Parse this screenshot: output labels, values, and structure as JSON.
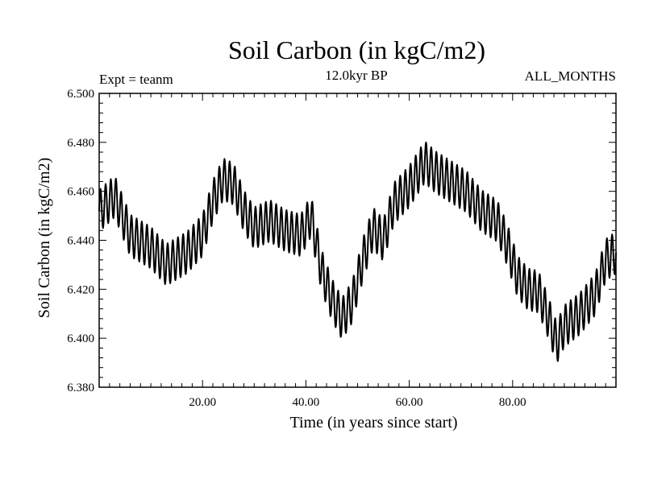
{
  "chart_data": {
    "type": "line",
    "title": "Soil Carbon (in kgC/m2)",
    "subtitle": "12.0kyr BP",
    "left_label": "Expt = teanm",
    "right_label": "ALL_MONTHS",
    "xlabel": "Time (in years since start)",
    "ylabel": "Soil Carbon (in kgC/m2)",
    "xlim": [
      0,
      100
    ],
    "ylim": [
      6.38,
      6.5
    ],
    "x_ticks": [
      20,
      40,
      60,
      80
    ],
    "x_tick_labels": [
      "20.00",
      "40.00",
      "60.00",
      "80.00"
    ],
    "y_ticks": [
      6.38,
      6.4,
      6.42,
      6.44,
      6.46,
      6.48,
      6.5
    ],
    "y_tick_labels": [
      "6.380",
      "6.400",
      "6.420",
      "6.440",
      "6.460",
      "6.480",
      "6.500"
    ],
    "series": [
      {
        "name": "Soil Carbon",
        "seasonal_amplitude": 0.0085,
        "period_years": 1,
        "trend_x": [
          0,
          3,
          6,
          10,
          13,
          17,
          20,
          22,
          24,
          26,
          28,
          30,
          33,
          36,
          39,
          41,
          43,
          45,
          47,
          49,
          51,
          53,
          55,
          57,
          60,
          63,
          65,
          68,
          71,
          74,
          77,
          79,
          81,
          83,
          85,
          87,
          88.5,
          90,
          93,
          96,
          98,
          100
        ],
        "trend_y": [
          6.452,
          6.458,
          6.442,
          6.437,
          6.43,
          6.435,
          6.442,
          6.456,
          6.465,
          6.463,
          6.452,
          6.445,
          6.448,
          6.444,
          6.442,
          6.45,
          6.428,
          6.416,
          6.408,
          6.415,
          6.432,
          6.445,
          6.44,
          6.455,
          6.462,
          6.472,
          6.468,
          6.464,
          6.46,
          6.452,
          6.448,
          6.438,
          6.425,
          6.42,
          6.419,
          6.408,
          6.398,
          6.405,
          6.41,
          6.418,
          6.432,
          6.435
        ]
      }
    ]
  }
}
